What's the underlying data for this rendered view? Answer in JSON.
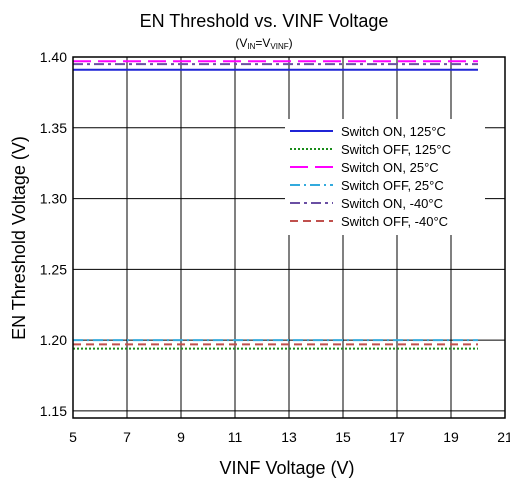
{
  "chart_data": {
    "type": "line",
    "title": "EN Threshold vs. VINF Voltage",
    "subtitle": {
      "open": "(V",
      "sub1": "IN",
      "mid": "=V",
      "sub2": "VINF",
      "close": ")"
    },
    "xlabel": "VINF Voltage (V)",
    "ylabel": "EN Threshold Voltage (V)",
    "xlim": [
      5,
      21
    ],
    "ylim": [
      1.145,
      1.4
    ],
    "x_ticks": [
      5,
      7,
      9,
      11,
      13,
      15,
      17,
      19,
      21
    ],
    "x_tick_labels": [
      "5",
      "7",
      "9",
      "11",
      "13",
      "15",
      "17",
      "19",
      "21"
    ],
    "y_ticks": [
      1.15,
      1.2,
      1.25,
      1.3,
      1.35,
      1.4
    ],
    "y_tick_labels": [
      "1.15",
      "1.20",
      "1.25",
      "1.30",
      "1.35",
      "1.40"
    ],
    "grid": true,
    "legend_position": "right",
    "series": [
      {
        "name": "Switch ON, 125°C",
        "color": "#1f24d6",
        "dash": "solid",
        "x": [
          5,
          20
        ],
        "y": [
          1.391,
          1.391
        ]
      },
      {
        "name": "Switch OFF, 125°C",
        "color": "#1a8c1a",
        "dash": "dotted",
        "x": [
          5,
          20
        ],
        "y": [
          1.194,
          1.194
        ]
      },
      {
        "name": "Switch ON, 25°C",
        "color": "#ff00ff",
        "dash": "longdash",
        "x": [
          5,
          20
        ],
        "y": [
          1.397,
          1.397
        ]
      },
      {
        "name": "Switch OFF, 25°C",
        "color": "#33aadd",
        "dash": "dashdot",
        "x": [
          5,
          20
        ],
        "y": [
          1.2,
          1.2
        ]
      },
      {
        "name": "Switch ON, -40°C",
        "color": "#6a4fa3",
        "dash": "dashdot2",
        "x": [
          5,
          20
        ],
        "y": [
          1.395,
          1.395
        ]
      },
      {
        "name": "Switch OFF, -40°C",
        "color": "#c0504d",
        "dash": "dash",
        "x": [
          5,
          20
        ],
        "y": [
          1.197,
          1.197
        ]
      }
    ]
  }
}
